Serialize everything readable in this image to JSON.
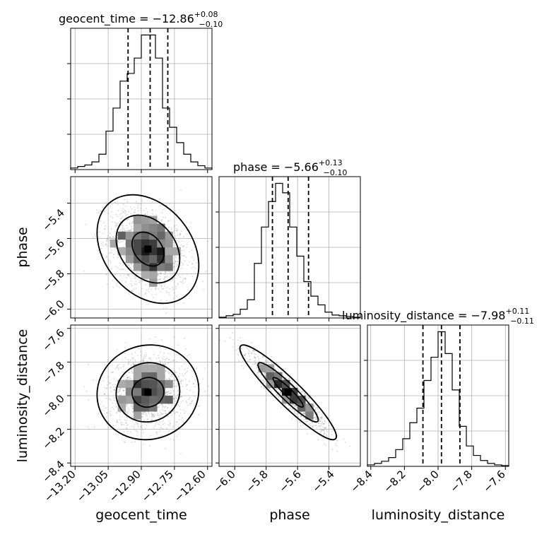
{
  "figure": {
    "parameters": [
      "geocent_time",
      "phase",
      "luminosity_distance"
    ],
    "colors": {
      "line": "#000000",
      "grid": "#b0b0b0",
      "points": "#8c8c8c"
    }
  },
  "chart_data": {
    "type": "corner",
    "panels": [
      {
        "id": "hist-geocent_time",
        "type": "histogram",
        "title": "geocent_time = −12.86",
        "title_sup": "+0.08",
        "title_sub": "−0.10",
        "range": [
          -13.22,
          -12.58
        ],
        "counts": [
          2,
          4,
          6,
          10,
          20,
          50,
          80,
          115,
          125,
          145,
          175,
          175,
          145,
          80,
          55,
          35,
          20,
          10,
          5,
          2
        ],
        "quantiles": [
          -12.96,
          -12.86,
          -12.78
        ],
        "xticks": [
          -13.2,
          -13.05,
          -12.9,
          -12.75,
          -12.6
        ]
      },
      {
        "id": "hist-phase",
        "type": "histogram",
        "title": "phase = −5.66",
        "title_sup": "+0.13",
        "title_sub": "−0.10",
        "range": [
          -6.1,
          -5.2
        ],
        "counts": [
          1,
          3,
          5,
          12,
          25,
          75,
          125,
          160,
          185,
          172,
          125,
          85,
          50,
          30,
          18,
          8,
          4,
          3,
          2,
          1
        ],
        "quantiles": [
          -5.76,
          -5.66,
          -5.53
        ],
        "xticks": [
          -6.0,
          -5.8,
          -5.6,
          -5.4
        ]
      },
      {
        "id": "hist-luminosity_distance",
        "type": "histogram",
        "title": "luminosity_distance = −7.98",
        "title_sup": "+0.11",
        "title_sub": "−0.11",
        "range": [
          -8.42,
          -7.58
        ],
        "counts": [
          2,
          4,
          7,
          12,
          23,
          38,
          60,
          80,
          118,
          150,
          185,
          155,
          105,
          55,
          28,
          15,
          8,
          4,
          2,
          1
        ],
        "quantiles": [
          -8.09,
          -7.98,
          -7.87
        ],
        "xticks": [
          -8.4,
          -8.2,
          -8.0,
          -7.8,
          -7.6
        ]
      },
      {
        "id": "scatter-geocent_time-phase",
        "type": "2d-density",
        "x": "geocent_time",
        "y": "phase",
        "xrange": [
          -13.22,
          -12.58
        ],
        "yrange": [
          -6.05,
          -5.25
        ],
        "mean": [
          -12.87,
          -5.66
        ],
        "sd": [
          0.09,
          0.12
        ],
        "rho": -0.3,
        "yticks": [
          -5.4,
          -5.6,
          -5.8,
          -6.0
        ]
      },
      {
        "id": "scatter-geocent_time-luminosity_distance",
        "type": "2d-density",
        "x": "geocent_time",
        "y": "luminosity_distance",
        "xrange": [
          -13.22,
          -12.58
        ],
        "yrange": [
          -8.42,
          -7.58
        ],
        "mean": [
          -12.87,
          -7.98
        ],
        "sd": [
          0.09,
          0.11
        ],
        "rho": 0.05,
        "xticks": [
          -13.2,
          -13.05,
          -12.9,
          -12.75,
          -12.6
        ],
        "yticks": [
          -7.6,
          -7.8,
          -8.0,
          -8.2,
          -8.4
        ]
      },
      {
        "id": "scatter-phase-luminosity_distance",
        "type": "2d-density",
        "x": "phase",
        "y": "luminosity_distance",
        "xrange": [
          -6.1,
          -5.2
        ],
        "yrange": [
          -8.42,
          -7.58
        ],
        "mean": [
          -5.66,
          -7.98
        ],
        "sd": [
          0.12,
          0.11
        ],
        "rho": -0.93,
        "xticks": [
          -6.0,
          -5.8,
          -5.6,
          -5.4
        ]
      }
    ],
    "axis_labels": {
      "x": [
        "geocent_time",
        "phase",
        "luminosity_distance"
      ],
      "y": [
        "phase",
        "luminosity_distance"
      ]
    },
    "tick_labels": {
      "geocent_time": [
        "−13.20",
        "−13.05",
        "−12.90",
        "−12.75",
        "−12.60"
      ],
      "phase": [
        "−6.0",
        "−5.8",
        "−5.6",
        "−5.4"
      ],
      "phase_y": [
        "−5.4",
        "−5.6",
        "−5.8",
        "−6.0"
      ],
      "luminosity_distance_y": [
        "−7.6",
        "−7.8",
        "−8.0",
        "−8.2",
        "−8.4"
      ],
      "luminosity_distance": [
        "−8.4",
        "−8.2",
        "−8.0",
        "−7.8",
        "−7.6"
      ]
    },
    "grid": true,
    "contour_levels": [
      0.393,
      0.865,
      0.989
    ]
  }
}
